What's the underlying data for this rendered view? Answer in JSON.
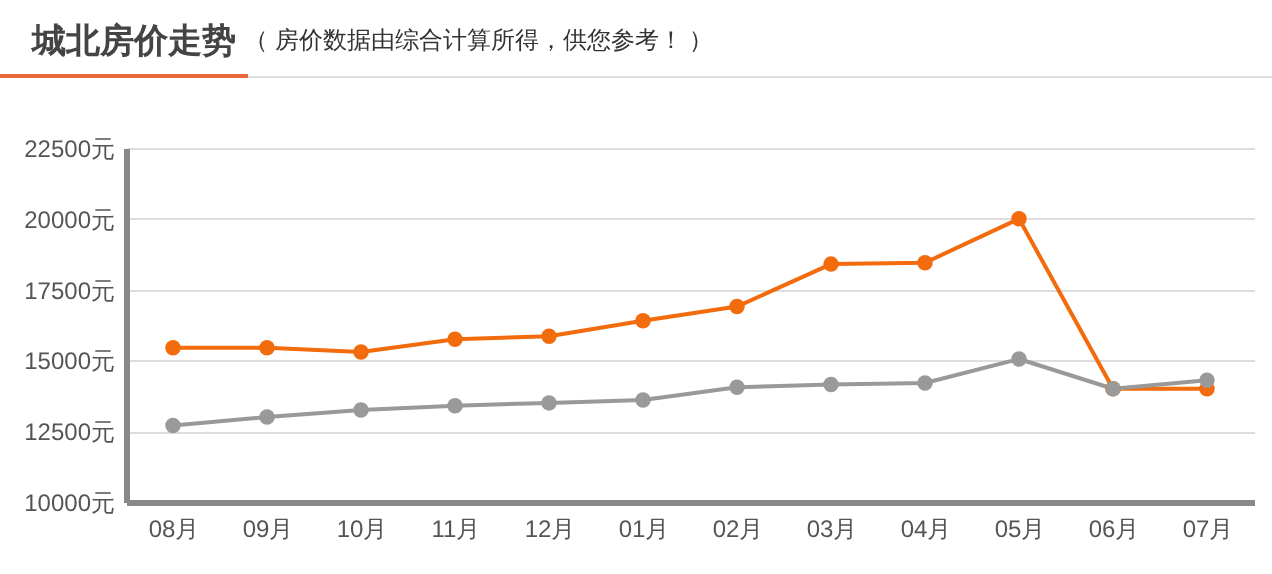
{
  "chart_data": {
    "type": "line",
    "title": "城北房价走势",
    "subtitle": "（ 房价数据由综合计算所得，供您参考！ ）",
    "categories": [
      "08月",
      "09月",
      "10月",
      "11月",
      "12月",
      "01月",
      "02月",
      "03月",
      "04月",
      "05月",
      "06月",
      "07月"
    ],
    "series": [
      {
        "color": "#f26b0c",
        "values": [
          15450,
          15450,
          15300,
          15750,
          15850,
          16400,
          16900,
          18400,
          18450,
          20000,
          14000,
          14000
        ]
      },
      {
        "color": "#999999",
        "values": [
          12700,
          13000,
          13250,
          13400,
          13500,
          13600,
          14050,
          14150,
          14200,
          15050,
          14000,
          14300
        ]
      }
    ],
    "ylim": [
      10000,
      22500
    ],
    "yticks": [
      {
        "value": 10000,
        "label": "10000元"
      },
      {
        "value": 12500,
        "label": "12500元"
      },
      {
        "value": 15000,
        "label": "15000元"
      },
      {
        "value": 17500,
        "label": "17500元"
      },
      {
        "value": 20000,
        "label": "20000元"
      },
      {
        "value": 22500,
        "label": "22500元"
      }
    ],
    "grid": "y",
    "marker": "circle",
    "line_style": "solid"
  }
}
